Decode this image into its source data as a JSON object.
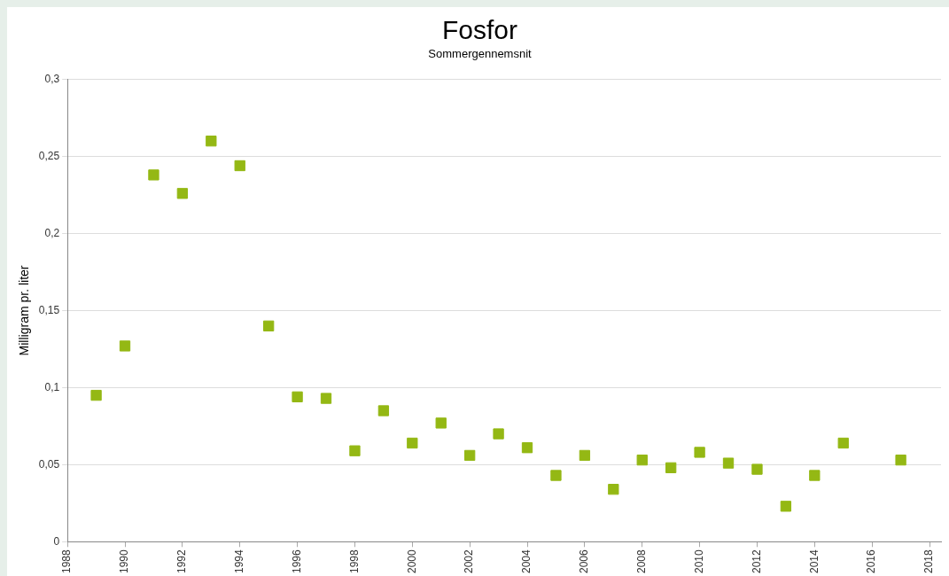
{
  "chart_data": {
    "type": "scatter",
    "title": "Fosfor",
    "subtitle": "Sommergennemsnit",
    "ylabel": "Milligram pr. liter",
    "x": [
      1989,
      1990,
      1991,
      1992,
      1993,
      1994,
      1995,
      1996,
      1997,
      1998,
      1999,
      2000,
      2001,
      2002,
      2003,
      2004,
      2005,
      2006,
      2007,
      2008,
      2009,
      2010,
      2011,
      2012,
      2013,
      2014,
      2015,
      2017
    ],
    "series": [
      {
        "color": "#94b814",
        "values": [
          0.095,
          0.127,
          0.238,
          0.226,
          0.26,
          0.244,
          0.14,
          0.094,
          0.093,
          0.059,
          0.085,
          0.064,
          0.077,
          0.056,
          0.07,
          0.061,
          0.043,
          0.056,
          0.034,
          0.053,
          0.048,
          0.058,
          0.051,
          0.047,
          0.023,
          0.043,
          0.064,
          0.053
        ]
      }
    ],
    "xlim": [
      1988,
      2018.4
    ],
    "xticks": [
      1988,
      1990,
      1992,
      1994,
      1996,
      1998,
      2000,
      2002,
      2004,
      2006,
      2008,
      2010,
      2012,
      2014,
      2016,
      2018
    ],
    "ylim": [
      0,
      0.3
    ],
    "yticks": [
      {
        "value": 0,
        "label": "0"
      },
      {
        "value": 0.05,
        "label": "0,05"
      },
      {
        "value": 0.1,
        "label": "0,1"
      },
      {
        "value": 0.15,
        "label": "0,15"
      },
      {
        "value": 0.2,
        "label": "0,2"
      },
      {
        "value": 0.25,
        "label": "0,25"
      },
      {
        "value": 0.3,
        "label": "0,3"
      }
    ],
    "grid": "y",
    "marker": "square",
    "legend": false
  }
}
